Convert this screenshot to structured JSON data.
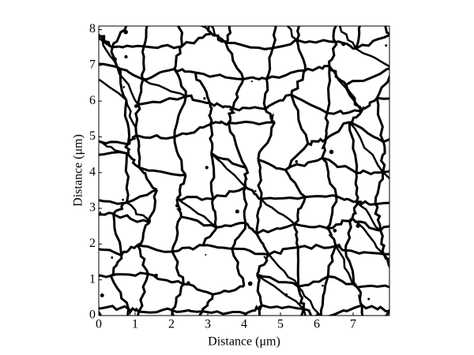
{
  "chart_data": {
    "type": "image",
    "xlabel": "Distance (μm)",
    "ylabel": "Distance (μm)",
    "xlim": [
      0,
      8
    ],
    "ylim": [
      0,
      8.1
    ],
    "xticks": [
      0,
      1,
      2,
      3,
      4,
      5,
      6,
      7
    ],
    "yticks": [
      0,
      1,
      2,
      3,
      4,
      5,
      6,
      7,
      8
    ]
  }
}
